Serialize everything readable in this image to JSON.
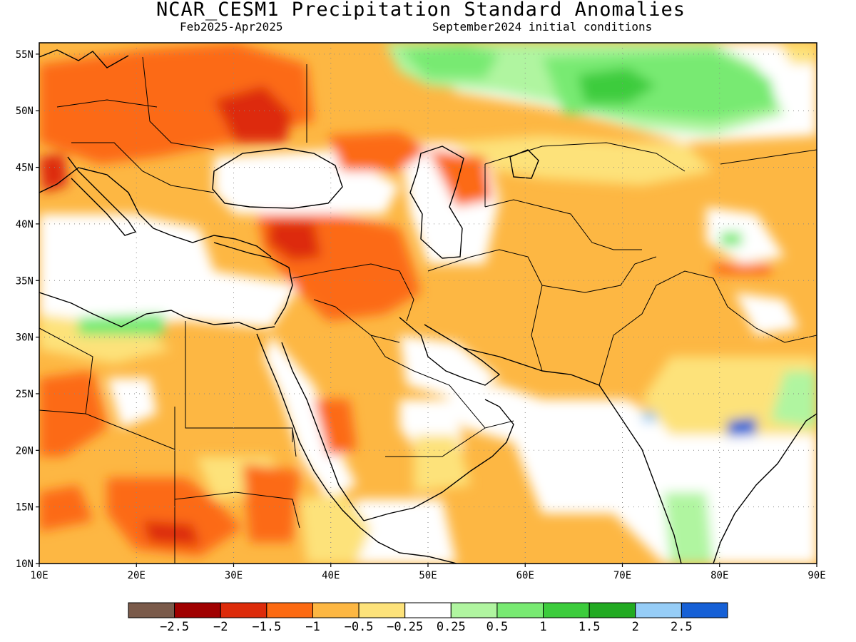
{
  "header": {
    "title": "NCAR_CESM1 Precipitation Standard Anomalies",
    "period": "Feb2025-Apr2025",
    "initial_conditions": "September2024 initial conditions"
  },
  "map": {
    "lon_labels": [
      "10E",
      "20E",
      "30E",
      "40E",
      "50E",
      "60E",
      "70E",
      "80E",
      "90E"
    ],
    "lat_labels": [
      "10N",
      "15N",
      "20N",
      "25N",
      "30N",
      "35N",
      "40N",
      "45N",
      "50N",
      "55N"
    ],
    "lon_range": [
      10,
      90
    ],
    "lat_range": [
      10,
      56
    ],
    "gridlines": "dotted"
  },
  "colorbar": {
    "colors": [
      "#7a5a4a",
      "#a00000",
      "#dd2b0a",
      "#fc6a12",
      "#fdb743",
      "#fde27a",
      "#ffffff",
      "#b0f5a0",
      "#78ea72",
      "#3ccc3c",
      "#22aa22",
      "#96cdf7",
      "#1660d6"
    ],
    "labels": [
      "-2.5",
      "-2",
      "-1.5",
      "-1",
      "-0.5",
      "-0.25",
      "0.25",
      "0.5",
      "1",
      "1.5",
      "2",
      "2.5"
    ]
  }
}
